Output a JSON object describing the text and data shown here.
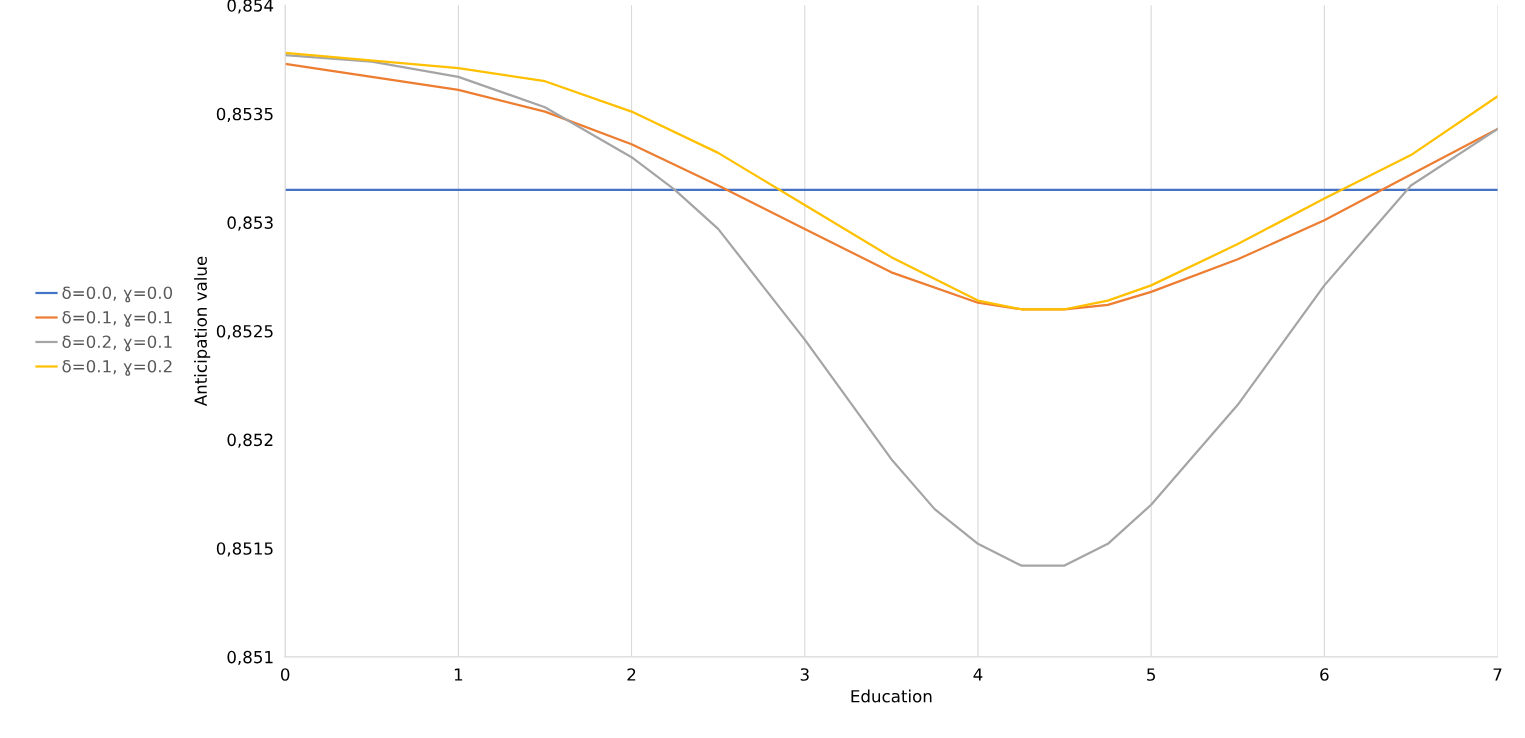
{
  "chart_data": {
    "type": "line",
    "xlabel": "Education",
    "ylabel": "Anticipation value",
    "xlim": [
      0,
      7
    ],
    "xticks": [
      0,
      1,
      2,
      3,
      4,
      5,
      6,
      7
    ],
    "ylim": [
      0.851,
      0.854
    ],
    "yticks": [
      {
        "value": 0.851,
        "label": "0,851"
      },
      {
        "value": 0.8515,
        "label": "0,8515"
      },
      {
        "value": 0.852,
        "label": "0,852"
      },
      {
        "value": 0.8525,
        "label": "0,8525"
      },
      {
        "value": 0.853,
        "label": "0,853"
      },
      {
        "value": 0.8535,
        "label": "0,8535"
      },
      {
        "value": 0.854,
        "label": "0,854"
      }
    ],
    "grid": "x",
    "legend": "left",
    "marker": "none",
    "line_style": "solid",
    "series": [
      {
        "name": "δ=0.0, ɣ=0.0",
        "color": "#4472c4",
        "x": [
          0,
          7
        ],
        "values": [
          0.85315,
          0.85315
        ]
      },
      {
        "name": "δ=0.1, ɣ=0.1",
        "color": "#ed7d31",
        "x": [
          0,
          1,
          1.5,
          2,
          2.5,
          3,
          3.5,
          4,
          4.25,
          4.5,
          4.75,
          5,
          5.5,
          6,
          6.5,
          7
        ],
        "values": [
          0.85373,
          0.85361,
          0.85351,
          0.85336,
          0.85317,
          0.85297,
          0.85277,
          0.85263,
          0.8526,
          0.8526,
          0.85262,
          0.85268,
          0.85283,
          0.85301,
          0.85322,
          0.85343
        ]
      },
      {
        "name": "δ=0.2, ɣ=0.1",
        "color": "#a5a5a5",
        "x": [
          0,
          0.5,
          1,
          1.5,
          2,
          2.25,
          2.5,
          3,
          3.5,
          3.75,
          4,
          4.25,
          4.5,
          4.75,
          5,
          5.5,
          6,
          6.5,
          7
        ],
        "values": [
          0.85377,
          0.85374,
          0.85367,
          0.85353,
          0.8533,
          0.85315,
          0.85297,
          0.85246,
          0.85191,
          0.85168,
          0.85152,
          0.85142,
          0.85142,
          0.85152,
          0.8517,
          0.85216,
          0.85271,
          0.85317,
          0.85343
        ]
      },
      {
        "name": "δ=0.1, ɣ=0.2",
        "color": "#ffc000",
        "x": [
          0,
          1,
          1.5,
          2,
          2.5,
          3,
          3.5,
          4,
          4.25,
          4.5,
          4.75,
          5,
          5.5,
          6,
          6.5,
          7
        ],
        "values": [
          0.85378,
          0.85371,
          0.85365,
          0.85351,
          0.85332,
          0.85308,
          0.85284,
          0.85264,
          0.8526,
          0.8526,
          0.85264,
          0.85271,
          0.8529,
          0.85311,
          0.85331,
          0.85358
        ]
      }
    ]
  }
}
